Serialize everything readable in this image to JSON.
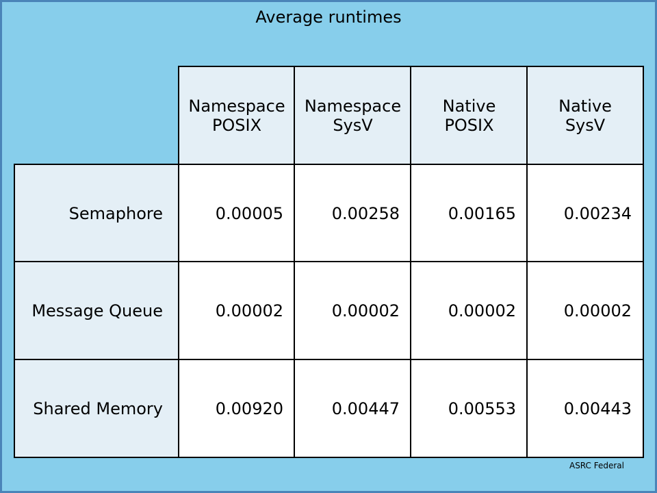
{
  "title": "Average runtimes",
  "table": {
    "columns": [
      {
        "line1": "Namespace",
        "line2": "POSIX"
      },
      {
        "line1": "Namespace",
        "line2": "SysV"
      },
      {
        "line1": "Native",
        "line2": "POSIX"
      },
      {
        "line1": "Native",
        "line2": "SysV"
      }
    ],
    "rows": [
      {
        "label": "Semaphore",
        "values": [
          "0.00005",
          "0.00258",
          "0.00165",
          "0.00234"
        ]
      },
      {
        "label": "Message Queue",
        "values": [
          "0.00002",
          "0.00002",
          "0.00002",
          "0.00002"
        ]
      },
      {
        "label": "Shared Memory",
        "values": [
          "0.00920",
          "0.00447",
          "0.00553",
          "0.00443"
        ]
      }
    ]
  },
  "footer": "ASRC Federal",
  "colors": {
    "background": "#87ceeb",
    "header_fill": "#e4eff6",
    "cell_fill": "#ffffff",
    "border": "#000000"
  }
}
